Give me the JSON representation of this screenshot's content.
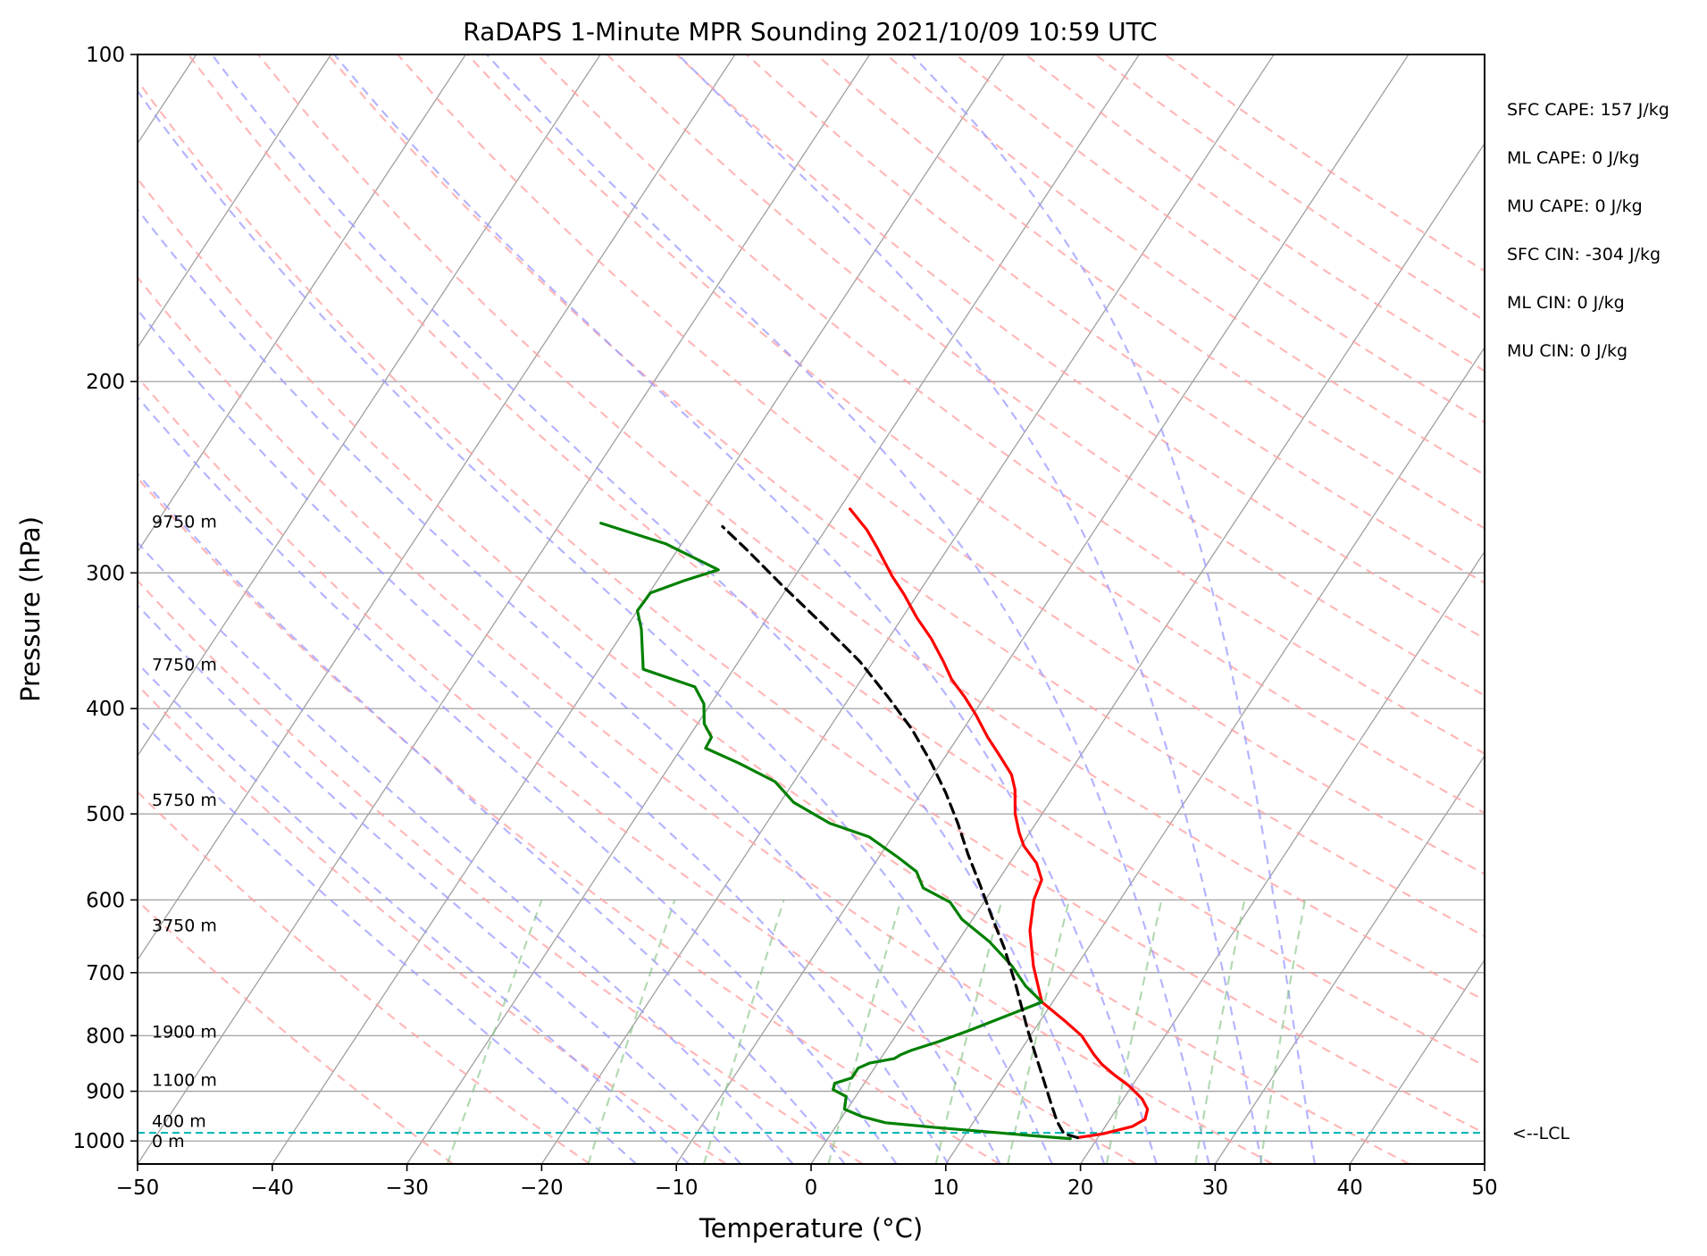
{
  "chart_data": {
    "type": "line",
    "title": "RaDAPS 1-Minute MPR Sounding 2021/10/09 10:59 UTC",
    "xlabel": "Temperature (°C)",
    "ylabel": "Pressure (hPa)",
    "xlim": [
      -50,
      50
    ],
    "ylim": [
      1050,
      100
    ],
    "y_scale": "log",
    "skew": "skew-T log-P",
    "x_ticks": [
      "−50",
      "−40",
      "−30",
      "−20",
      "−10",
      "0",
      "10",
      "20",
      "30",
      "40",
      "50"
    ],
    "x_tick_values": [
      -50,
      -40,
      -30,
      -20,
      -10,
      0,
      10,
      20,
      30,
      40,
      50
    ],
    "y_ticks": [
      "100",
      "200",
      "300",
      "400",
      "500",
      "600",
      "700",
      "800",
      "900",
      "1000"
    ],
    "y_tick_values": [
      100,
      200,
      300,
      400,
      500,
      600,
      700,
      800,
      900,
      1000
    ],
    "grid": true,
    "series": [
      {
        "role": "temperature",
        "color": "#ff0000",
        "points": [
          [
            18.5,
            993
          ],
          [
            20.2,
            985
          ],
          [
            22.0,
            970
          ],
          [
            22.6,
            955
          ],
          [
            22.3,
            935
          ],
          [
            21.4,
            915
          ],
          [
            19.8,
            890
          ],
          [
            18.2,
            870
          ],
          [
            16.7,
            850
          ],
          [
            15.6,
            832
          ],
          [
            13.8,
            800
          ],
          [
            11.8,
            775
          ],
          [
            9.2,
            745
          ],
          [
            6.8,
            690
          ],
          [
            4.8,
            640
          ],
          [
            3.6,
            600
          ],
          [
            3.2,
            575
          ],
          [
            2.0,
            555
          ],
          [
            0.2,
            535
          ],
          [
            -0.8,
            520
          ],
          [
            -2.0,
            500
          ],
          [
            -3.2,
            475
          ],
          [
            -4.2,
            460
          ],
          [
            -6.2,
            440
          ],
          [
            -7.8,
            425
          ],
          [
            -9.8,
            405
          ],
          [
            -11.5,
            390
          ],
          [
            -13.3,
            376
          ],
          [
            -14.8,
            362
          ],
          [
            -16.8,
            345
          ],
          [
            -18.9,
            330
          ],
          [
            -21.0,
            314
          ],
          [
            -22.8,
            302
          ],
          [
            -25.2,
            285
          ],
          [
            -26.9,
            274
          ],
          [
            -29.2,
            262
          ]
        ]
      },
      {
        "role": "dewpoint",
        "color": "#008000",
        "points": [
          [
            18.0,
            995
          ],
          [
            15.5,
            990
          ],
          [
            12.5,
            983
          ],
          [
            7.5,
            972
          ],
          [
            3.5,
            962
          ],
          [
            1.5,
            950
          ],
          [
            -0.2,
            935
          ],
          [
            -0.7,
            910
          ],
          [
            -2.0,
            897
          ],
          [
            -2.2,
            885
          ],
          [
            -1.2,
            875
          ],
          [
            -1.2,
            865
          ],
          [
            -1.2,
            857
          ],
          [
            -0.6,
            848
          ],
          [
            1.0,
            840
          ],
          [
            1.3,
            833
          ],
          [
            1.9,
            825
          ],
          [
            3.5,
            810
          ],
          [
            5.3,
            790
          ],
          [
            9.2,
            745
          ],
          [
            7.2,
            720
          ],
          [
            5.2,
            690
          ],
          [
            2.3,
            655
          ],
          [
            -0.8,
            625
          ],
          [
            -2.5,
            603
          ],
          [
            -5.2,
            585
          ],
          [
            -6.5,
            565
          ],
          [
            -8.6,
            548
          ],
          [
            -11.7,
            525
          ],
          [
            -15.3,
            510
          ],
          [
            -19.0,
            488
          ],
          [
            -21.4,
            467
          ],
          [
            -25.0,
            449
          ],
          [
            -28.2,
            435
          ],
          [
            -28.3,
            425
          ],
          [
            -29.5,
            413
          ],
          [
            -30.5,
            396
          ],
          [
            -32.0,
            382
          ],
          [
            -36.7,
            368
          ],
          [
            -38.8,
            338
          ],
          [
            -40.0,
            325
          ],
          [
            -39.9,
            313
          ],
          [
            -38.0,
            305
          ],
          [
            -36.0,
            298
          ],
          [
            -41.2,
            282
          ],
          [
            -47.0,
            270
          ]
        ]
      },
      {
        "role": "parcel",
        "color": "#000000",
        "style": "dashed",
        "points": [
          [
            18.5,
            993
          ],
          [
            17.3,
            985
          ],
          [
            16.2,
            960
          ],
          [
            14.9,
            925
          ],
          [
            13.2,
            880
          ],
          [
            11.6,
            840
          ],
          [
            9.5,
            790
          ],
          [
            6.5,
            720
          ],
          [
            3.8,
            665
          ],
          [
            1.2,
            620
          ],
          [
            -1.2,
            580
          ],
          [
            -3.5,
            545
          ],
          [
            -5.8,
            510
          ],
          [
            -8.2,
            478
          ],
          [
            -10.8,
            448
          ],
          [
            -13.8,
            418
          ],
          [
            -17.2,
            390
          ],
          [
            -21.0,
            362
          ],
          [
            -25.5,
            335
          ],
          [
            -30.5,
            308
          ],
          [
            -35.0,
            285
          ],
          [
            -37.8,
            272
          ]
        ]
      }
    ],
    "lcl_pressure": 983,
    "lcl_color": "#00b3b3",
    "lcl_label": "<--LCL",
    "height_labels": [
      {
        "text": "9750 m",
        "p": 269
      },
      {
        "text": "7750 m",
        "p": 364
      },
      {
        "text": "5750 m",
        "p": 485
      },
      {
        "text": "3750 m",
        "p": 633
      },
      {
        "text": "1900 m",
        "p": 793
      },
      {
        "text": "1100 m",
        "p": 878
      },
      {
        "text": "400 m",
        "p": 958
      },
      {
        "text": "0 m",
        "p": 1000
      }
    ],
    "parameters": [
      "SFC CAPE: 157 J/kg",
      "ML CAPE: 0 J/kg",
      "MU CAPE: 0 J/kg",
      "SFC CIN: -304 J/kg",
      "ML CIN: 0 J/kg",
      "MU CIN: 0 J/kg"
    ],
    "reference_lines": {
      "isotherm_color": "#a0a0a0",
      "dry_adiabat_color": "#ffa0a0",
      "moist_adiabat_color": "#9b9bff",
      "mixing_ratio_color": "#80c080"
    }
  }
}
